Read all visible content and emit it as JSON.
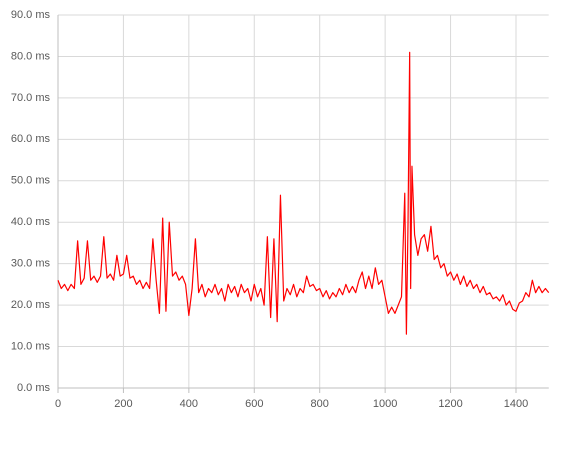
{
  "chart_data": {
    "type": "line",
    "color": "#ff0000",
    "grid": true,
    "xlim": [
      0,
      1500
    ],
    "xticks": [
      0,
      200,
      400,
      600,
      800,
      1000,
      1200,
      1400
    ],
    "ylim": [
      0,
      90
    ],
    "yticks": [
      {
        "value": 0,
        "label": "0.0 ms"
      },
      {
        "value": 10,
        "label": "10.0 ms"
      },
      {
        "value": 20,
        "label": "20.0 ms"
      },
      {
        "value": 30,
        "label": "30.0 ms"
      },
      {
        "value": 40,
        "label": "40.0 ms"
      },
      {
        "value": 50,
        "label": "50.0 ms"
      },
      {
        "value": 60,
        "label": "60.0 ms"
      },
      {
        "value": 70,
        "label": "70.0 ms"
      },
      {
        "value": 80,
        "label": "80.0 ms"
      },
      {
        "value": 90,
        "label": "90.0 ms"
      }
    ],
    "x": [
      0,
      10,
      20,
      30,
      40,
      50,
      60,
      70,
      80,
      90,
      100,
      110,
      120,
      130,
      140,
      150,
      160,
      170,
      180,
      190,
      200,
      210,
      220,
      230,
      240,
      250,
      260,
      270,
      280,
      290,
      300,
      310,
      320,
      330,
      340,
      350,
      360,
      370,
      380,
      390,
      400,
      410,
      420,
      430,
      440,
      450,
      460,
      470,
      480,
      490,
      500,
      510,
      520,
      530,
      540,
      550,
      560,
      570,
      580,
      590,
      600,
      610,
      620,
      630,
      640,
      650,
      660,
      670,
      680,
      690,
      700,
      710,
      720,
      730,
      740,
      750,
      760,
      770,
      780,
      790,
      800,
      810,
      820,
      830,
      840,
      850,
      860,
      870,
      880,
      890,
      900,
      910,
      920,
      930,
      940,
      950,
      960,
      970,
      980,
      990,
      1000,
      1010,
      1020,
      1030,
      1040,
      1050,
      1060,
      1065,
      1070,
      1075,
      1078,
      1082,
      1090,
      1100,
      1110,
      1120,
      1130,
      1140,
      1150,
      1160,
      1170,
      1180,
      1190,
      1200,
      1210,
      1220,
      1230,
      1240,
      1250,
      1260,
      1270,
      1280,
      1290,
      1300,
      1310,
      1320,
      1330,
      1340,
      1350,
      1360,
      1370,
      1380,
      1390,
      1400,
      1410,
      1420,
      1430,
      1440,
      1450,
      1460,
      1470,
      1480,
      1490,
      1500
    ],
    "values": [
      26,
      24,
      25,
      23.5,
      25,
      24,
      35.5,
      25,
      26.5,
      35.5,
      26,
      27,
      25.5,
      27,
      36.5,
      26.5,
      27.5,
      26,
      32,
      27,
      27.5,
      32,
      26.5,
      27,
      25,
      26,
      24,
      25.5,
      24,
      36,
      26,
      18,
      41,
      18.5,
      40,
      27,
      28,
      26,
      27,
      25,
      17.5,
      24,
      36,
      23,
      25,
      22,
      24,
      23,
      25,
      22.5,
      24,
      21,
      25,
      23,
      24.5,
      22,
      25,
      23,
      24,
      21,
      25,
      22,
      24,
      20,
      36.5,
      17,
      36,
      16,
      46.5,
      21,
      24,
      22.5,
      25,
      22,
      24,
      23,
      27,
      24.5,
      25,
      23.5,
      24,
      22,
      23.5,
      21.5,
      23,
      22,
      24,
      22.5,
      25,
      23,
      24.5,
      23,
      26,
      28,
      24,
      27,
      24,
      29,
      25,
      26,
      22,
      18,
      19.5,
      18,
      20,
      22,
      47,
      13,
      40,
      81,
      24,
      53.5,
      37,
      32,
      36,
      37,
      33,
      39,
      31,
      32,
      29,
      30,
      27,
      28,
      26,
      27.5,
      25,
      27,
      24.5,
      26,
      24,
      25,
      23,
      24.5,
      22.5,
      23,
      21.5,
      22,
      21,
      22.5,
      20,
      21,
      19,
      18.5,
      20.5,
      21,
      23,
      22,
      26,
      23,
      24.5,
      23,
      24,
      23
    ]
  }
}
